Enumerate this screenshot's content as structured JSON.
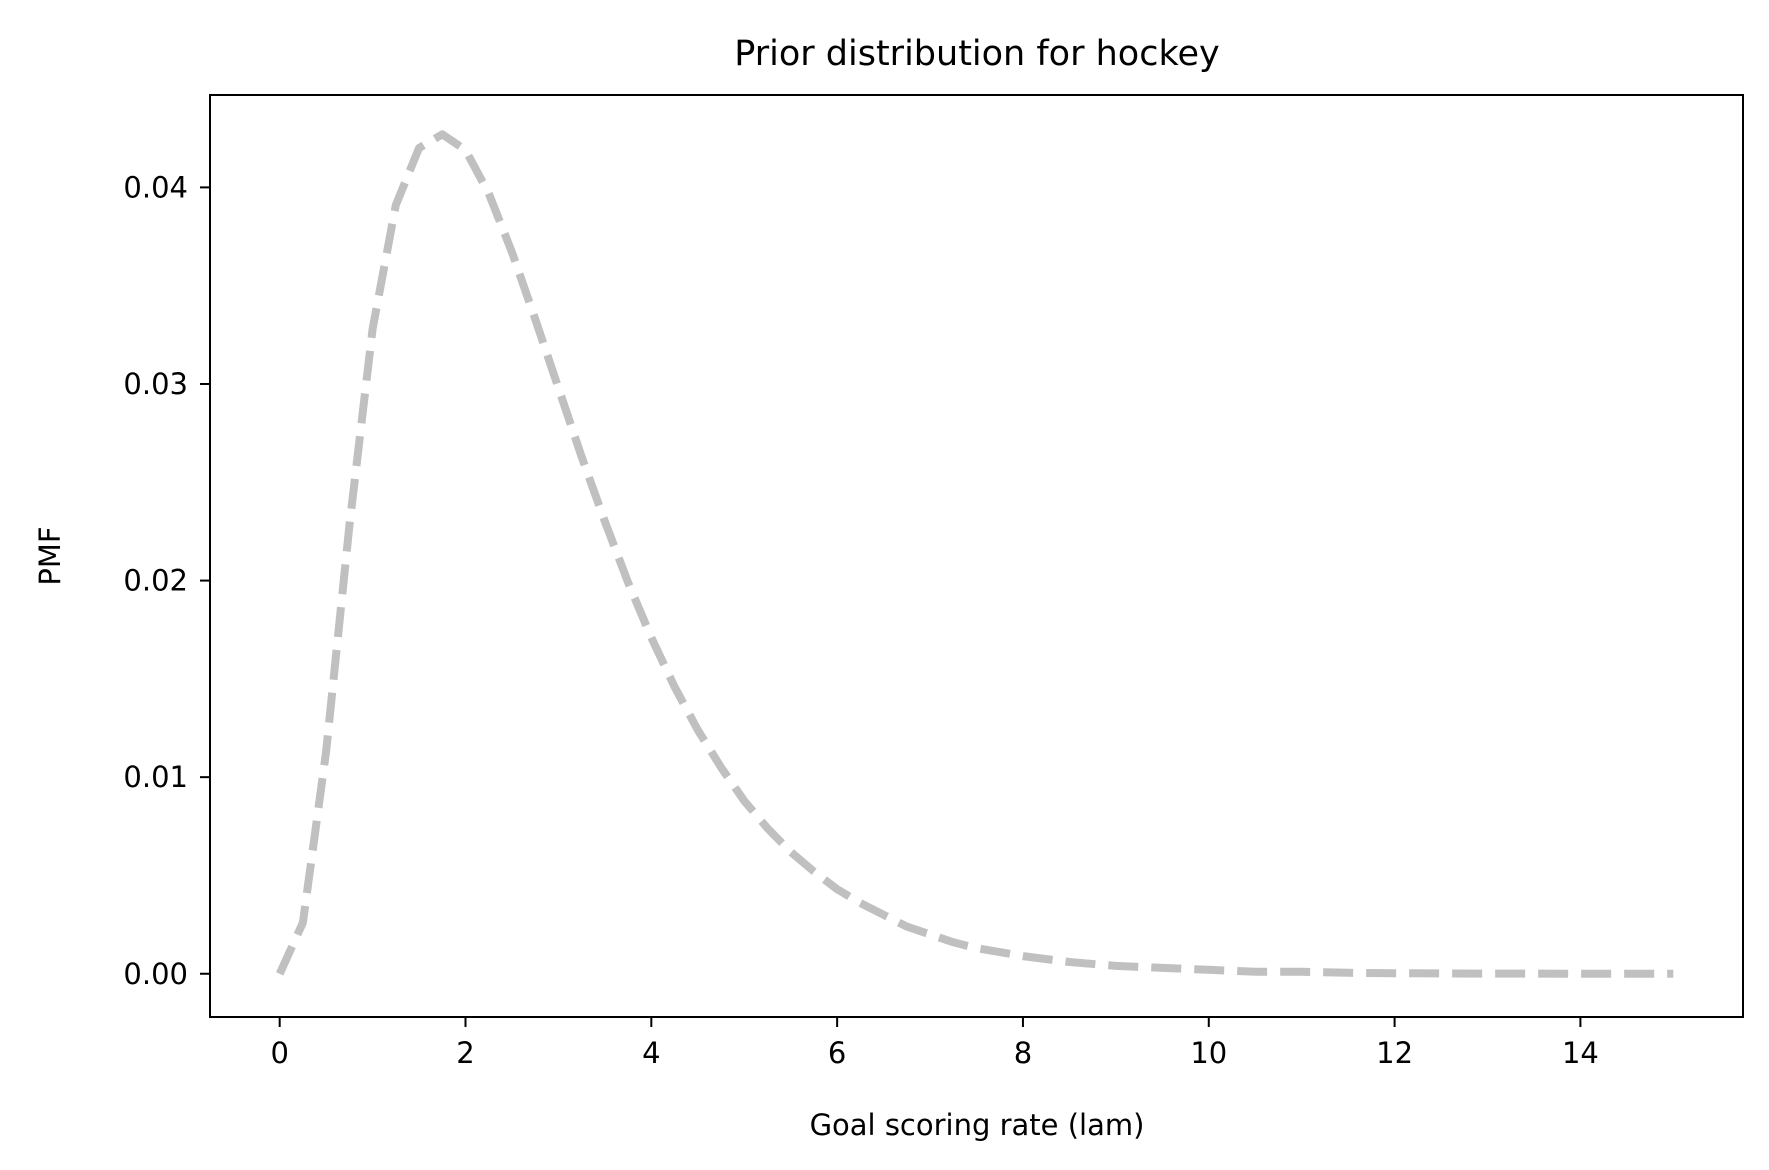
{
  "chart_data": {
    "type": "line",
    "title": "Prior distribution for hockey",
    "xlabel": "Goal scoring rate (lam)",
    "ylabel": "PMF",
    "xlim": [
      -0.75,
      15.75
    ],
    "ylim": [
      -0.0022,
      0.0447
    ],
    "xticks": [
      0,
      2,
      4,
      6,
      8,
      10,
      12,
      14
    ],
    "yticks": [
      0.0,
      0.01,
      0.02,
      0.03,
      0.04
    ],
    "grid": false,
    "legend": "none",
    "series": [
      {
        "color": "#c0c0c0",
        "style": "dashed",
        "x": [
          0.0,
          0.25,
          0.5,
          0.75,
          1.0,
          1.25,
          1.5,
          1.75,
          2.0,
          2.25,
          2.5,
          2.75,
          3.0,
          3.25,
          3.5,
          3.75,
          4.0,
          4.25,
          4.5,
          4.75,
          5.0,
          5.25,
          5.5,
          5.75,
          6.0,
          6.25,
          6.5,
          6.75,
          7.0,
          7.25,
          7.5,
          7.75,
          8.0,
          8.5,
          9.0,
          9.5,
          10.0,
          10.5,
          11.0,
          11.5,
          12.0,
          12.5,
          13.0,
          13.5,
          14.0,
          14.5,
          15.0
        ],
        "values": [
          0.0,
          0.0026,
          0.0113,
          0.0228,
          0.0328,
          0.0391,
          0.042,
          0.0427,
          0.0419,
          0.0397,
          0.0367,
          0.0333,
          0.0298,
          0.0263,
          0.023,
          0.0199,
          0.0171,
          0.0146,
          0.0124,
          0.0105,
          0.0088,
          0.0074,
          0.0062,
          0.0052,
          0.0043,
          0.0036,
          0.003,
          0.0024,
          0.002,
          0.0016,
          0.0013,
          0.0011,
          0.0009,
          0.0006,
          0.0004,
          0.0003,
          0.0002,
          0.0001,
          0.0001,
          5e-05,
          3e-05,
          2e-05,
          1e-05,
          1e-05,
          0.0,
          0.0,
          0.0
        ]
      }
    ]
  }
}
